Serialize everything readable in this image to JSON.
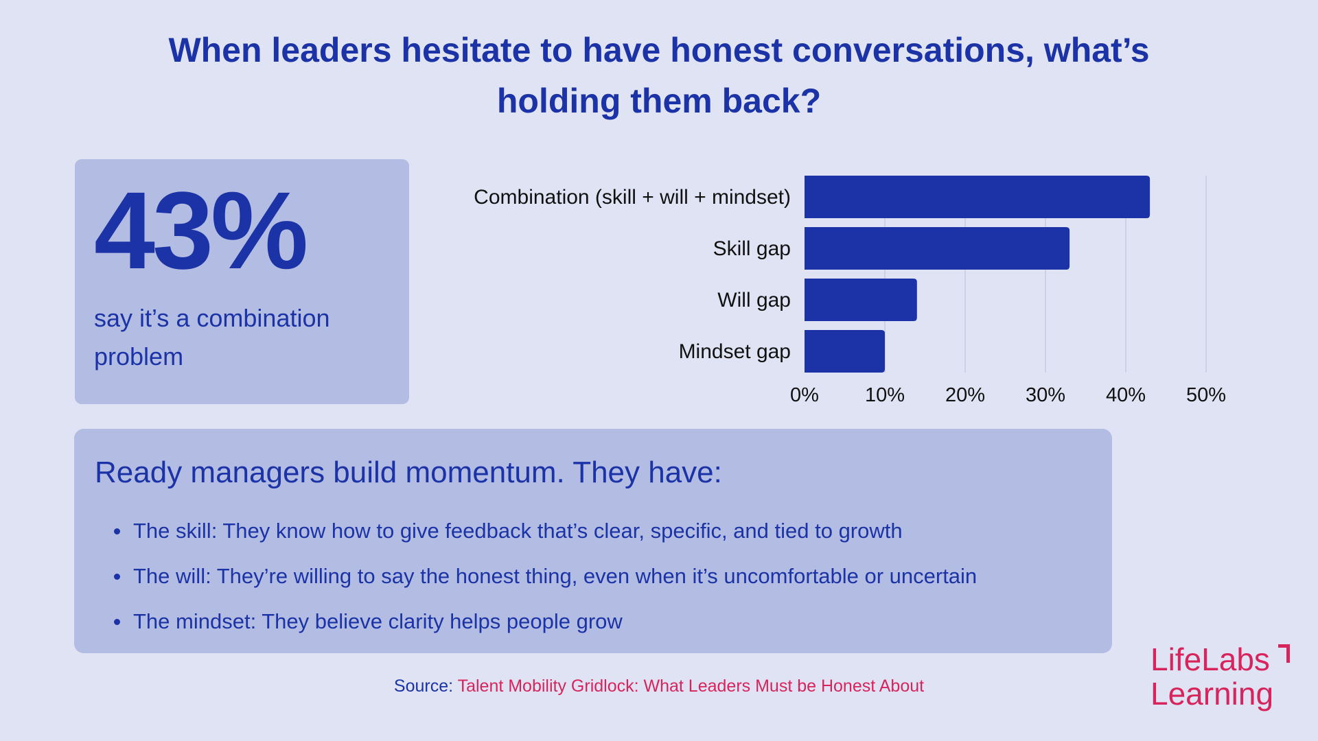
{
  "title": "When leaders hesitate to have honest conversations, what’s holding them back?",
  "stat": {
    "value": "43%",
    "caption": "say it’s a combination problem"
  },
  "chart_data": {
    "type": "bar",
    "orientation": "horizontal",
    "categories": [
      "Combination (skill + will + mindset)",
      "Skill gap",
      "Will gap",
      "Mindset gap"
    ],
    "values": [
      43,
      33,
      14,
      10
    ],
    "xlim": [
      0,
      50
    ],
    "xticks": [
      "0%",
      "10%",
      "20%",
      "30%",
      "40%",
      "50%"
    ],
    "grid": "vertical",
    "bar_color": "#1b33a6",
    "grid_color": "#b9bfd9"
  },
  "info": {
    "heading": "Ready managers build momentum. They have:",
    "bullets": [
      "The skill: They know how to give feedback that’s clear, specific, and tied to growth",
      "The will: They’re willing to say the honest thing, even when it’s uncomfortable or uncertain",
      "The mindset: They believe clarity helps people grow"
    ]
  },
  "source": {
    "label": "Source:",
    "link_text": "Talent Mobility Gridlock: What Leaders Must be Honest About"
  },
  "logo": {
    "line1": "LifeLabs",
    "line2": "Learning"
  },
  "colors": {
    "background": "#dfe3f3",
    "card": "#b3bce2",
    "accent": "#1b33a6",
    "brand": "#d8245c"
  }
}
